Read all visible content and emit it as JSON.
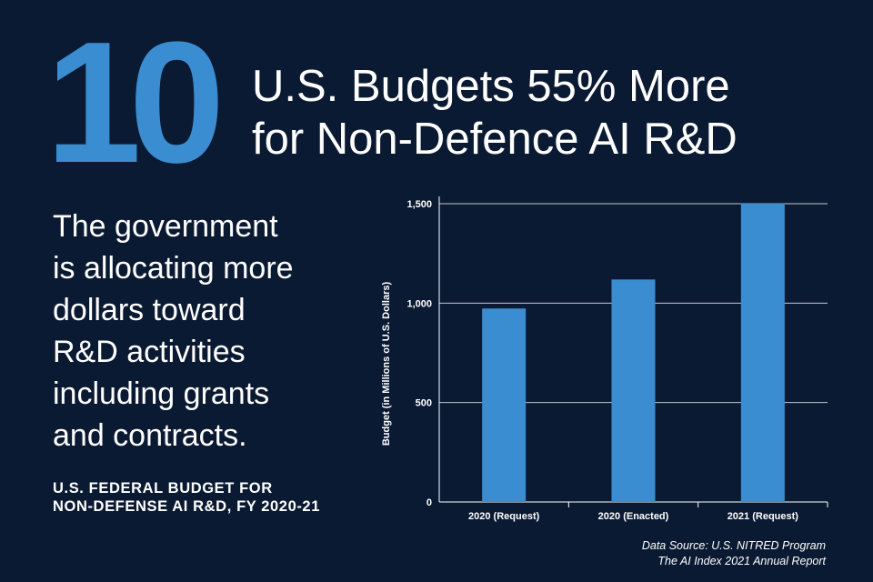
{
  "hero": {
    "number": "10",
    "headline_line1": "U.S. Budgets 55% More",
    "headline_line2": "for Non-Defence AI R&D"
  },
  "body": {
    "lines": [
      "The government",
      "is allocating more",
      "dollars toward",
      "R&D activities",
      "including grants",
      "and contracts."
    ]
  },
  "caption": {
    "line1": "U.S. FEDERAL BUDGET FOR",
    "line2": "NON-DEFENSE AI R&D, FY 2020-21"
  },
  "source": {
    "line1": "Data Source: U.S. NITRED Program",
    "line2": "The AI Index 2021 Annual Report"
  },
  "colors": {
    "background": "#0b1a33",
    "accent": "#3a8dd0",
    "bar": "#3a8dd0",
    "grid": "#ffffff"
  },
  "chart_data": {
    "type": "bar",
    "title": "U.S. Federal Budget for Non-Defense AI R&D, FY 2020-21",
    "xlabel": "",
    "ylabel": "Budget (in Millions of U.S. Dollars)",
    "categories": [
      "2020 (Request)",
      "2020 (Enacted)",
      "2021 (Request)"
    ],
    "values": [
      973,
      1119,
      1501
    ],
    "ylim": [
      0,
      1500
    ],
    "yticks": [
      0,
      500,
      1000,
      1500
    ],
    "ytick_labels": [
      "0",
      "500",
      "1,000",
      "1,500"
    ],
    "grid": true,
    "legend": "none"
  }
}
